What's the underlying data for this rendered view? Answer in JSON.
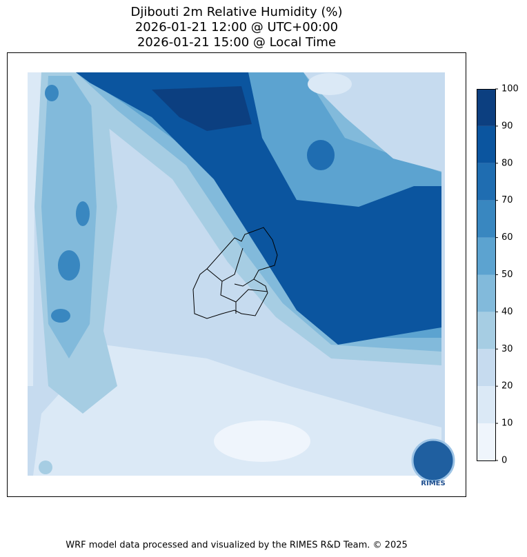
{
  "title": [
    "Djibouti 2m Relative Humidity (%)",
    "2026-01-21 12:00 @ UTC+00:00",
    "2026-01-21 15:00 @ Local Time"
  ],
  "colorbar": {
    "ticks": [
      0,
      10,
      20,
      30,
      40,
      50,
      60,
      70,
      80,
      90,
      100
    ],
    "colors": [
      "#eff5fc",
      "#dbe9f6",
      "#c6dbef",
      "#a6cde3",
      "#82badb",
      "#5ca3d0",
      "#3987c0",
      "#1f6db1",
      "#0b559f",
      "#0c3f80"
    ]
  },
  "logo": "RIMES",
  "footer": "WRF model data processed and visualized by the RIMES R&D Team. © 2025"
}
